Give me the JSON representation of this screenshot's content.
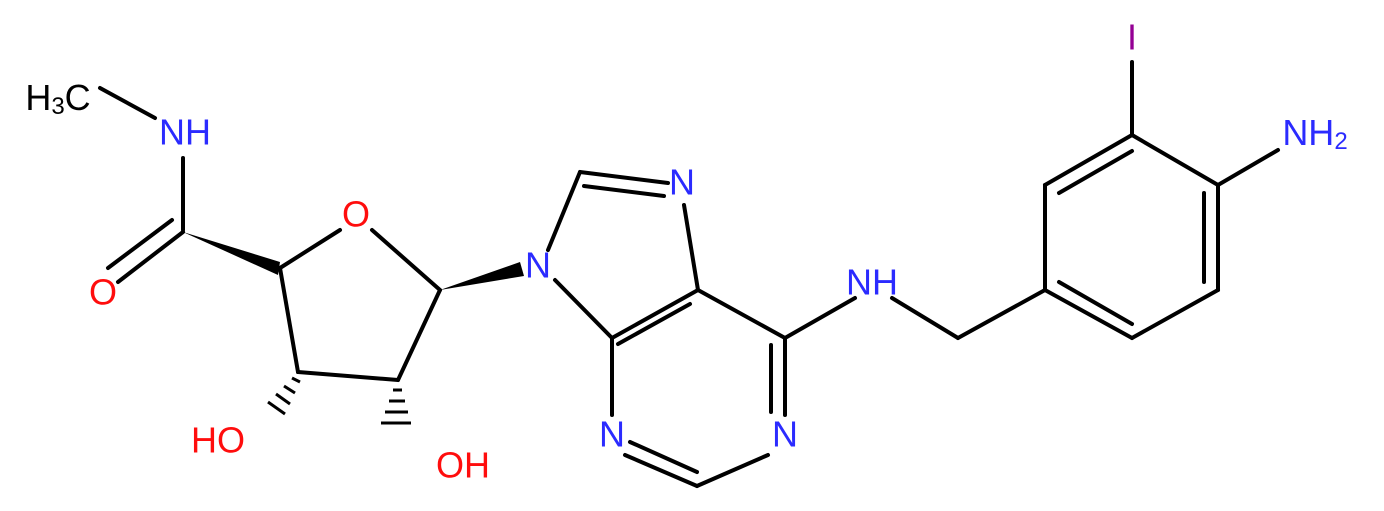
{
  "molecule": {
    "atoms": [
      {
        "label": [
          "H",
          "3",
          "C"
        ]
      },
      {
        "label": [
          "NH"
        ]
      },
      {
        "label": [
          "O"
        ]
      },
      {
        "label": [
          "O"
        ]
      },
      {
        "label": [
          "N"
        ]
      },
      {
        "label": [
          "N"
        ]
      },
      {
        "label": [
          "NH"
        ]
      },
      {
        "label": [
          "N"
        ]
      },
      {
        "label": [
          "N"
        ]
      },
      {
        "label": [
          "HO"
        ]
      },
      {
        "label": [
          "OH"
        ]
      },
      {
        "label": [
          "I"
        ]
      },
      {
        "label": [
          "NH",
          "2"
        ]
      }
    ]
  }
}
